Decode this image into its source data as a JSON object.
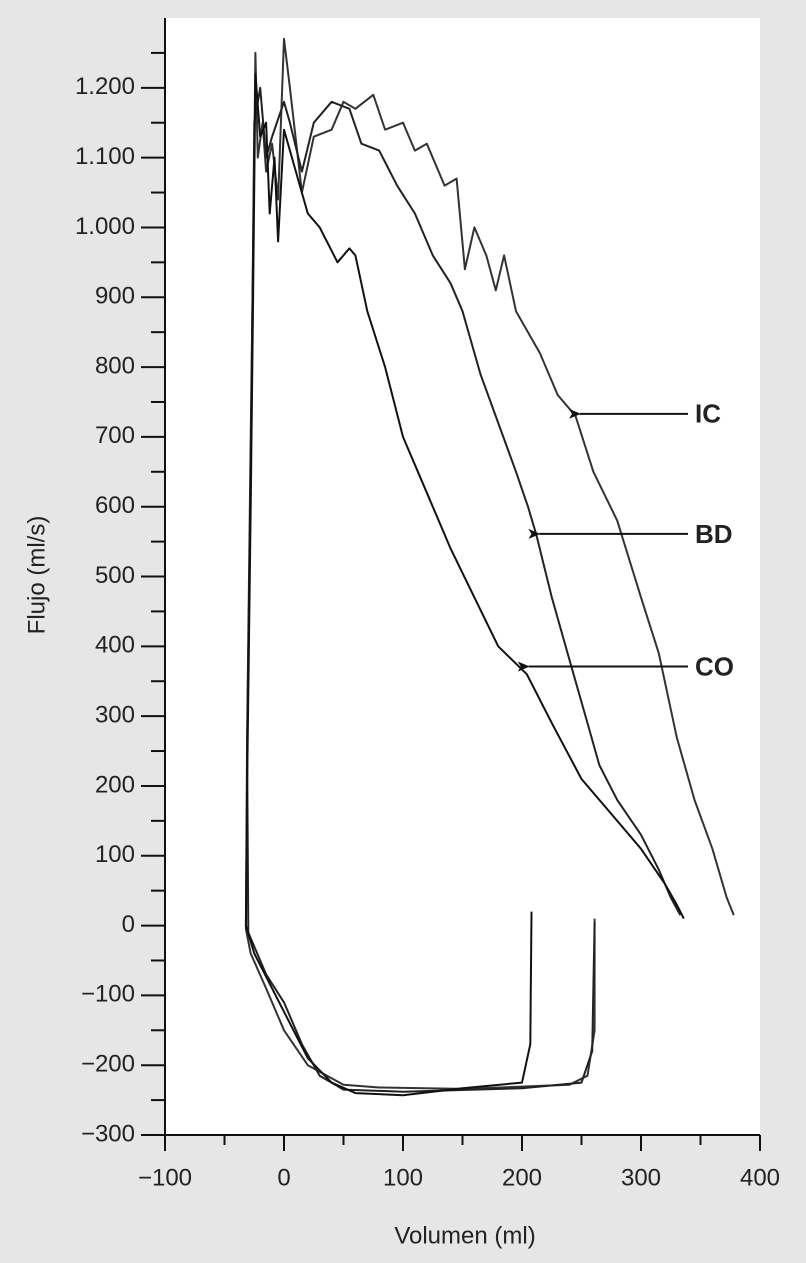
{
  "chart_data": {
    "type": "line",
    "xlabel": "Volumen  (ml)",
    "ylabel": "Flujo (ml/s)",
    "xlim": [
      -100,
      400
    ],
    "ylim": [
      -300,
      1300
    ],
    "xticks": [
      {
        "value": -100,
        "label": "−100"
      },
      0,
      100,
      200,
      300,
      400
    ],
    "yticks": [
      {
        "value": -300,
        "label": "−300"
      },
      {
        "value": -200,
        "label": "−200"
      },
      {
        "value": -100,
        "label": "−100"
      },
      0,
      100,
      200,
      300,
      400,
      500,
      600,
      700,
      800,
      900,
      {
        "value": 1000,
        "label": "1.000"
      },
      {
        "value": 1100,
        "label": "1.100"
      },
      {
        "value": 1200,
        "label": "1.200"
      }
    ],
    "x_minor_ticks": [
      -50,
      50,
      150,
      250,
      350
    ],
    "y_minor_ticks": [
      -250,
      -150,
      -50,
      50,
      150,
      250,
      350,
      450,
      550,
      650,
      750,
      850,
      950,
      1050,
      1150,
      1250
    ],
    "series": [
      {
        "name": "IC",
        "color": "#333333",
        "x": [
          261,
          261,
          255,
          240,
          150,
          80,
          50,
          20,
          0,
          -15,
          -28,
          -32,
          -31,
          -28,
          -26,
          -24,
          -22,
          -18,
          -15,
          -10,
          -5,
          0,
          5,
          15,
          25,
          40,
          50,
          60,
          75,
          85,
          100,
          110,
          120,
          135,
          145,
          152,
          160,
          170,
          178,
          185,
          195,
          215,
          230,
          245,
          260,
          280,
          300,
          315,
          330,
          345,
          360,
          372,
          378
        ],
        "values": [
          10,
          -150,
          -215,
          -228,
          -234,
          -232,
          -228,
          -200,
          -150,
          -90,
          -40,
          -5,
          270,
          700,
          960,
          1250,
          1100,
          1150,
          1080,
          1120,
          1040,
          1270,
          1200,
          1050,
          1130,
          1140,
          1180,
          1170,
          1190,
          1140,
          1150,
          1110,
          1120,
          1060,
          1070,
          940,
          1000,
          960,
          910,
          960,
          880,
          820,
          760,
          730,
          650,
          580,
          470,
          390,
          270,
          180,
          110,
          40,
          15
        ]
      },
      {
        "name": "BD",
        "color": "#222222",
        "x": [
          261,
          259,
          250,
          200,
          100,
          50,
          30,
          15,
          0,
          -15,
          -30,
          -31,
          -28,
          -25,
          -20,
          -15,
          -10,
          0,
          5,
          15,
          25,
          40,
          55,
          65,
          80,
          95,
          110,
          125,
          140,
          150,
          165,
          180,
          195,
          205,
          212,
          225,
          240,
          255,
          265,
          280,
          300,
          315,
          325,
          333
        ],
        "values": [
          5,
          -180,
          -225,
          -233,
          -238,
          -235,
          -215,
          -170,
          -110,
          -70,
          -10,
          250,
          650,
          1150,
          1200,
          1100,
          1130,
          1180,
          1150,
          1080,
          1150,
          1180,
          1170,
          1120,
          1110,
          1060,
          1020,
          960,
          920,
          880,
          790,
          720,
          650,
          600,
          560,
          470,
          380,
          290,
          230,
          180,
          130,
          80,
          40,
          15
        ]
      },
      {
        "name": "CO",
        "color": "#111111",
        "x": [
          208,
          207,
          200,
          150,
          100,
          60,
          40,
          20,
          5,
          -10,
          -25,
          -32,
          -31,
          -28,
          -26,
          -24,
          -20,
          -15,
          -12,
          -8,
          -5,
          0,
          10,
          20,
          30,
          45,
          55,
          60,
          70,
          85,
          100,
          120,
          140,
          160,
          180,
          204,
          225,
          250,
          275,
          300,
          320,
          330,
          336
        ],
        "values": [
          20,
          -170,
          -225,
          -233,
          -243,
          -240,
          -225,
          -190,
          -140,
          -90,
          -40,
          0,
          200,
          600,
          900,
          1220,
          1130,
          1150,
          1020,
          1100,
          980,
          1140,
          1080,
          1020,
          1000,
          950,
          970,
          960,
          880,
          800,
          700,
          620,
          540,
          470,
          400,
          360,
          290,
          210,
          160,
          110,
          60,
          30,
          10
        ]
      }
    ],
    "annotations": [
      {
        "text": "IC",
        "x": 247,
        "y": 733
      },
      {
        "text": "BD",
        "x": 213,
        "y": 561
      },
      {
        "text": "CO",
        "x": 204,
        "y": 371
      }
    ]
  }
}
